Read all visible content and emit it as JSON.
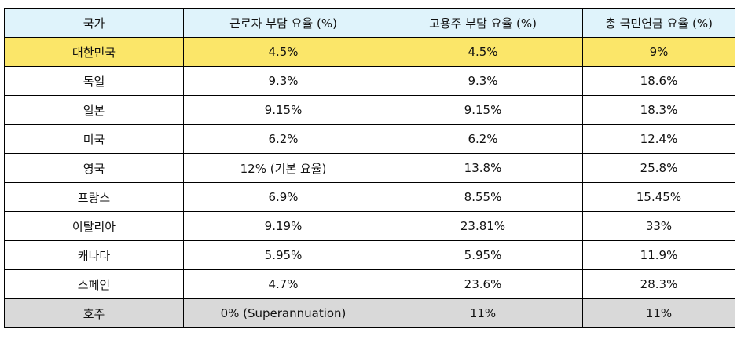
{
  "colors": {
    "header_bg": "#dff3fb",
    "highlight_bg": "#fbe669",
    "muted_bg": "#d9d9d9",
    "border": "#000000"
  },
  "table": {
    "headers": [
      "국가",
      "근로자 부담 요율 (%)",
      "고용주 부담 요율 (%)",
      "총 국민연금 요율 (%)"
    ],
    "rows": [
      [
        "대한민국",
        "4.5%",
        "4.5%",
        "9%"
      ],
      [
        "독일",
        "9.3%",
        "9.3%",
        "18.6%"
      ],
      [
        "일본",
        "9.15%",
        "9.15%",
        "18.3%"
      ],
      [
        "미국",
        "6.2%",
        "6.2%",
        "12.4%"
      ],
      [
        "영국",
        "12% (기본 요율)",
        "13.8%",
        "25.8%"
      ],
      [
        "프랑스",
        "6.9%",
        "8.55%",
        "15.45%"
      ],
      [
        "이탈리아",
        "9.19%",
        "23.81%",
        "33%"
      ],
      [
        "캐나다",
        "5.95%",
        "5.95%",
        "11.9%"
      ],
      [
        "스페인",
        "4.7%",
        "23.6%",
        "28.3%"
      ],
      [
        "호주",
        "0% (Superannuation)",
        "11%",
        "11%"
      ]
    ]
  }
}
